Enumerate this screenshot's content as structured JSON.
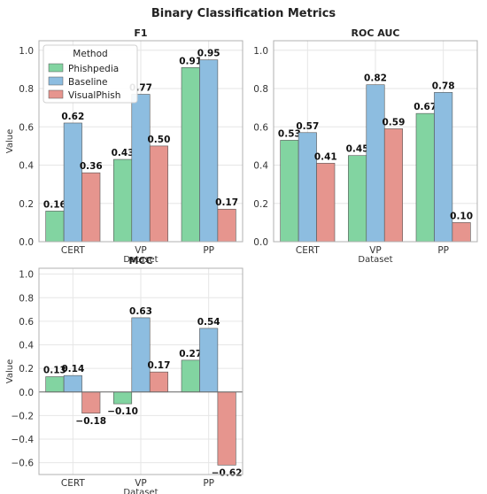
{
  "figure_title": "Binary Classification Metrics",
  "legend": {
    "title": "Method",
    "placement": "upper-left (F1 panel)"
  },
  "colors": {
    "Phishpedia": "#82d4a1",
    "Baseline": "#8dbde0",
    "VisualPhish": "#e6958e",
    "grid": "#e6e6e6",
    "spine": "#b0b0b0",
    "bar_edge": "#555555"
  },
  "chart_data": [
    {
      "type": "bar",
      "title": "F1",
      "xlabel": "Dataset",
      "ylabel": "Value",
      "categories": [
        "CERT",
        "VP",
        "PP"
      ],
      "ylim": [
        0,
        1.05
      ],
      "yticks": [
        0.0,
        0.2,
        0.4,
        0.6,
        0.8,
        1.0
      ],
      "ytick_labels": [
        "0.0",
        "0.2",
        "0.4",
        "0.6",
        "0.8",
        "1.0"
      ],
      "grid": true,
      "legend": true,
      "series": [
        {
          "name": "Phishpedia",
          "values": [
            0.16,
            0.43,
            0.91
          ],
          "labels": [
            "0.16",
            "0.43",
            "0.91"
          ]
        },
        {
          "name": "Baseline",
          "values": [
            0.62,
            0.77,
            0.95
          ],
          "labels": [
            "0.62",
            "0.77",
            "0.95"
          ]
        },
        {
          "name": "VisualPhish",
          "values": [
            0.36,
            0.5,
            0.17
          ],
          "labels": [
            "0.36",
            "0.50",
            "0.17"
          ]
        }
      ]
    },
    {
      "type": "bar",
      "title": "ROC AUC",
      "xlabel": "Dataset",
      "ylabel": "",
      "categories": [
        "CERT",
        "VP",
        "PP"
      ],
      "ylim": [
        0,
        1.05
      ],
      "yticks": [
        0.0,
        0.2,
        0.4,
        0.6,
        0.8,
        1.0
      ],
      "ytick_labels": [
        "0.0",
        "0.2",
        "0.4",
        "0.6",
        "0.8",
        "1.0"
      ],
      "grid": true,
      "legend": false,
      "series": [
        {
          "name": "Phishpedia",
          "values": [
            0.53,
            0.45,
            0.67
          ],
          "labels": [
            "0.53",
            "0.45",
            "0.67"
          ]
        },
        {
          "name": "Baseline",
          "values": [
            0.57,
            0.82,
            0.78
          ],
          "labels": [
            "0.57",
            "0.82",
            "0.78"
          ]
        },
        {
          "name": "VisualPhish",
          "values": [
            0.41,
            0.59,
            0.1
          ],
          "labels": [
            "0.41",
            "0.59",
            "0.10"
          ]
        }
      ]
    },
    {
      "type": "bar",
      "title": "MCC",
      "xlabel": "Dataset",
      "ylabel": "Value",
      "categories": [
        "CERT",
        "VP",
        "PP"
      ],
      "ylim": [
        -0.7,
        1.05
      ],
      "yticks": [
        -0.6,
        -0.4,
        -0.2,
        0.0,
        0.2,
        0.4,
        0.6,
        0.8,
        1.0
      ],
      "ytick_labels": [
        "−0.6",
        "−0.4",
        "−0.2",
        "0.0",
        "0.2",
        "0.4",
        "0.6",
        "0.8",
        "1.0"
      ],
      "grid": true,
      "legend": false,
      "series": [
        {
          "name": "Phishpedia",
          "values": [
            0.13,
            -0.1,
            0.27
          ],
          "labels": [
            "0.13",
            "−0.10",
            "0.27"
          ]
        },
        {
          "name": "Baseline",
          "values": [
            0.14,
            0.63,
            0.54
          ],
          "labels": [
            "0.14",
            "0.63",
            "0.54"
          ]
        },
        {
          "name": "VisualPhish",
          "values": [
            -0.18,
            0.17,
            -0.62
          ],
          "labels": [
            "−0.18",
            "0.17",
            "−0.62"
          ]
        }
      ]
    }
  ]
}
